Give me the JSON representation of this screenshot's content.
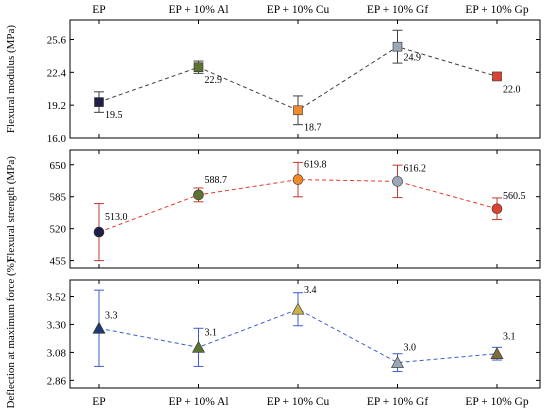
{
  "chart_data": {
    "type": "line",
    "categories": [
      "EP",
      "EP + 10% Al",
      "EP + 10% Cu",
      "EP + 10% Gf",
      "EP + 10% Gp"
    ],
    "panels": [
      {
        "ylabel": "Flexural modulus (MPa)",
        "ylim": [
          16.0,
          27.5
        ],
        "yticks": [
          "16.0",
          "19.2",
          "22.4",
          "25.6"
        ],
        "values": [
          19.5,
          22.9,
          18.7,
          24.9,
          22.0
        ],
        "errors": [
          1.0,
          0.6,
          1.4,
          1.6,
          0.3
        ],
        "labels": [
          "19.5",
          "22.9",
          "18.7",
          "24.9",
          "22.0"
        ],
        "line_color": "#404040",
        "marker": "square",
        "marker_colors": [
          "#1f1f4a",
          "#5b7330",
          "#f08a2a",
          "#9aa7b8",
          "#d9432f"
        ],
        "error_color": "#404040"
      },
      {
        "ylabel": "Flexural strength (MPa)",
        "ylim": [
          440,
          680
        ],
        "yticks": [
          "455",
          "520",
          "585",
          "650"
        ],
        "values": [
          513.0,
          588.7,
          619.8,
          616.2,
          560.5
        ],
        "errors": [
          58,
          14,
          35,
          33,
          22
        ],
        "labels": [
          "513.0",
          "588.7",
          "619.8",
          "616.2",
          "560.5"
        ],
        "line_color": "#e8382c",
        "marker": "circle",
        "marker_colors": [
          "#1f1f4a",
          "#5b7330",
          "#f08a2a",
          "#9aa7b8",
          "#d9432f"
        ],
        "error_color": "#c0392b"
      },
      {
        "ylabel": "Deflection at maximum force (%)",
        "ylim": [
          2.8,
          3.65
        ],
        "yticks": [
          "2.86",
          "3.08",
          "3.30",
          "3.52"
        ],
        "values": [
          3.27,
          3.12,
          3.42,
          3.0,
          3.07
        ],
        "errors": [
          0.3,
          0.15,
          0.13,
          0.07,
          0.05
        ],
        "labels": [
          "3.3",
          "3.1",
          "3.4",
          "3.0",
          "3.1"
        ],
        "line_color": "#3a5fcd",
        "marker": "triangle",
        "marker_colors": [
          "#1f3a6e",
          "#5b7330",
          "#c9b24a",
          "#9aa7b8",
          "#7d6b3a"
        ],
        "error_color": "#3a5fcd"
      }
    ]
  }
}
